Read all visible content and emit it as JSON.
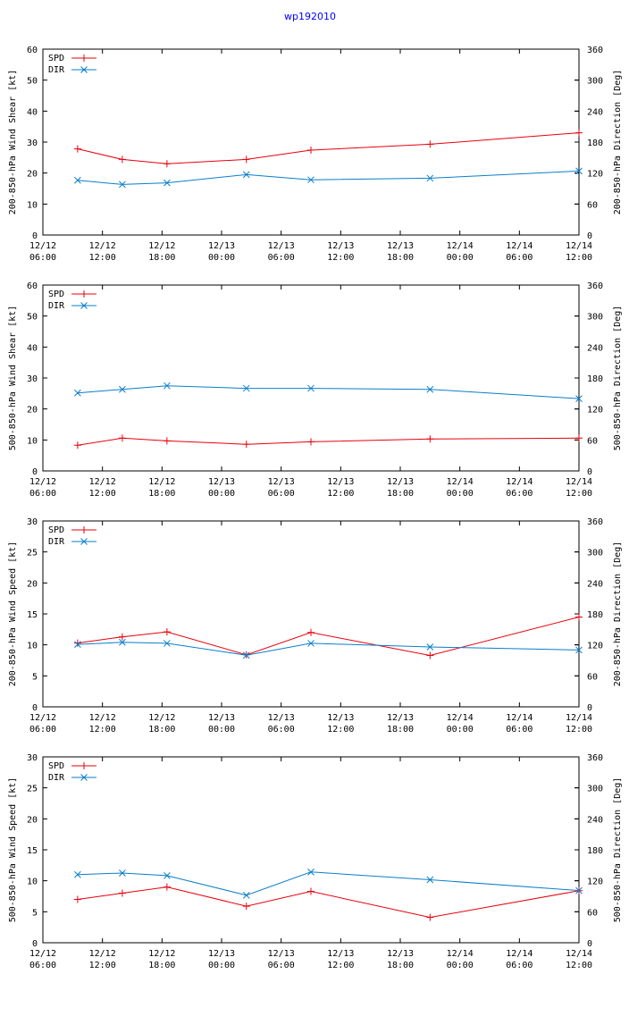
{
  "title": "wp192010",
  "colors": {
    "spd": "#e8000b",
    "dir": "#0a7ecb",
    "axis": "#000000",
    "title": "#0000ff"
  },
  "x_ticks": [
    {
      "date": "12/12",
      "time": "06:00"
    },
    {
      "date": "12/12",
      "time": "12:00"
    },
    {
      "date": "12/12",
      "time": "18:00"
    },
    {
      "date": "12/13",
      "time": "00:00"
    },
    {
      "date": "12/13",
      "time": "06:00"
    },
    {
      "date": "12/13",
      "time": "12:00"
    },
    {
      "date": "12/13",
      "time": "18:00"
    },
    {
      "date": "12/14",
      "time": "00:00"
    },
    {
      "date": "12/14",
      "time": "06:00"
    },
    {
      "date": "12/14",
      "time": "12:00"
    }
  ],
  "chart_data": [
    {
      "type": "line",
      "ylabel": "200-850-hPa Wind Shear [kt]",
      "y2label": "200-850-hPa Direction [Deg]",
      "ylim": [
        0,
        60
      ],
      "yticks": [
        0,
        10,
        20,
        30,
        40,
        50,
        60
      ],
      "y2lim": [
        0,
        360
      ],
      "y2ticks": [
        0,
        60,
        120,
        180,
        240,
        300,
        360
      ],
      "xlim_hours": [
        0,
        54
      ],
      "legend": [
        "SPD",
        "DIR"
      ],
      "series": [
        {
          "name": "SPD",
          "axis": "left",
          "x_hours": [
            3.5,
            8,
            12.5,
            20.5,
            27,
            39,
            54
          ],
          "values": [
            27.8,
            24.4,
            23.0,
            24.4,
            27.4,
            29.3,
            33.0
          ]
        },
        {
          "name": "DIR",
          "axis": "right",
          "x_hours": [
            3.5,
            8,
            12.5,
            20.5,
            27,
            39,
            54
          ],
          "values": [
            106,
            98,
            101,
            117,
            107,
            110,
            124
          ]
        }
      ]
    },
    {
      "type": "line",
      "ylabel": "500-850-hPa Wind Shear [kt]",
      "y2label": "500-850-hPa Direction [Deg]",
      "ylim": [
        0,
        60
      ],
      "yticks": [
        0,
        10,
        20,
        30,
        40,
        50,
        60
      ],
      "y2lim": [
        0,
        360
      ],
      "y2ticks": [
        0,
        60,
        120,
        180,
        240,
        300,
        360
      ],
      "xlim_hours": [
        0,
        54
      ],
      "legend": [
        "SPD",
        "DIR"
      ],
      "series": [
        {
          "name": "SPD",
          "axis": "left",
          "x_hours": [
            3.5,
            8,
            12.5,
            20.5,
            27,
            39,
            54
          ],
          "values": [
            8.3,
            10.6,
            9.7,
            8.6,
            9.4,
            10.3,
            10.6
          ]
        },
        {
          "name": "DIR",
          "axis": "right",
          "x_hours": [
            3.5,
            8,
            12.5,
            20.5,
            27,
            39,
            54
          ],
          "values": [
            151,
            158,
            165,
            160,
            160,
            158,
            140
          ]
        }
      ]
    },
    {
      "type": "line",
      "ylabel": "200-850-hPa Wind Speed [kt]",
      "y2label": "200-850-hPa Direction [Deg]",
      "ylim": [
        0,
        30
      ],
      "yticks": [
        0,
        5,
        10,
        15,
        20,
        25,
        30
      ],
      "y2lim": [
        0,
        360
      ],
      "y2ticks": [
        0,
        60,
        120,
        180,
        240,
        300,
        360
      ],
      "xlim_hours": [
        0,
        54
      ],
      "legend": [
        "SPD",
        "DIR"
      ],
      "series": [
        {
          "name": "SPD",
          "axis": "left",
          "x_hours": [
            3.5,
            8,
            12.5,
            20.5,
            27,
            39,
            54
          ],
          "values": [
            10.3,
            11.3,
            12.1,
            8.4,
            12.0,
            8.3,
            14.5
          ]
        },
        {
          "name": "DIR",
          "axis": "right",
          "x_hours": [
            3.5,
            8,
            12.5,
            20.5,
            27,
            39,
            54
          ],
          "values": [
            121,
            125,
            123,
            100,
            123,
            116,
            110
          ]
        }
      ]
    },
    {
      "type": "line",
      "ylabel": "500-850-hPa Wind Speed [kt]",
      "y2label": "500-850-hPa Direction [Deg]",
      "ylim": [
        0,
        30
      ],
      "yticks": [
        0,
        5,
        10,
        15,
        20,
        25,
        30
      ],
      "y2lim": [
        0,
        360
      ],
      "y2ticks": [
        0,
        60,
        120,
        180,
        240,
        300,
        360
      ],
      "xlim_hours": [
        0,
        54
      ],
      "legend": [
        "SPD",
        "DIR"
      ],
      "series": [
        {
          "name": "SPD",
          "axis": "left",
          "x_hours": [
            3.5,
            8,
            12.5,
            20.5,
            27,
            39,
            54
          ],
          "values": [
            7.0,
            8.0,
            9.0,
            5.9,
            8.3,
            4.1,
            8.4
          ]
        },
        {
          "name": "DIR",
          "axis": "right",
          "x_hours": [
            3.5,
            8,
            12.5,
            20.5,
            27,
            39,
            54
          ],
          "values": [
            132,
            135,
            130,
            92,
            137,
            122,
            101
          ]
        }
      ]
    }
  ]
}
